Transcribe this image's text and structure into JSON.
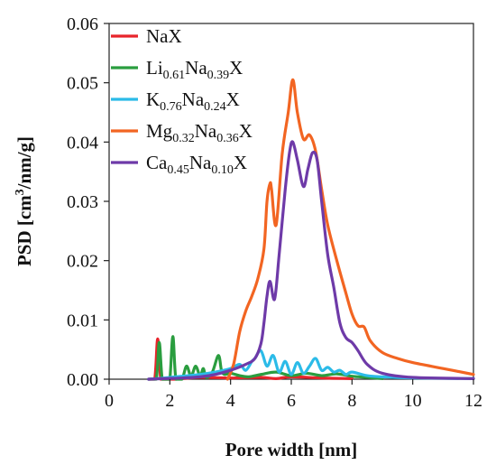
{
  "chart_data": {
    "type": "line",
    "xlabel": "Pore width [nm]",
    "ylabel_main": "PSD [cm",
    "ylabel_sup": "3",
    "ylabel_tail": "/nm/g]",
    "xlim": [
      0,
      12
    ],
    "ylim": [
      0,
      0.06
    ],
    "xticks": [
      "0",
      "2",
      "4",
      "6",
      "8",
      "10",
      "12"
    ],
    "yticks": [
      "0.00",
      "0.01",
      "0.02",
      "0.03",
      "0.04",
      "0.05",
      "0.06"
    ],
    "legend_position": "top-left",
    "grid": false,
    "series": [
      {
        "key": "nax",
        "legend": [
          {
            "t": "NaX",
            "sub": false
          }
        ],
        "color": "#e8242b",
        "x": [
          1.3,
          1.5,
          1.6,
          1.7,
          1.8,
          2.0,
          2.1,
          2.2,
          3.0,
          4.0,
          5.0,
          5.5,
          6.0,
          7.0,
          8.0
        ],
        "y": [
          0.0,
          0.0,
          0.0068,
          0.0,
          0.0,
          0.0,
          0.0,
          0.0,
          0.0003,
          0.0002,
          0.0003,
          0.0001,
          0.0004,
          0.0002,
          0.0001
        ]
      },
      {
        "key": "li",
        "legend": [
          {
            "t": "Li",
            "sub": false
          },
          {
            "t": "0.61",
            "sub": true
          },
          {
            "t": "Na",
            "sub": false
          },
          {
            "t": "0.39",
            "sub": true
          },
          {
            "t": "X",
            "sub": false
          }
        ],
        "color": "#2a9d3f",
        "x": [
          1.3,
          1.55,
          1.65,
          1.75,
          1.9,
          2.0,
          2.1,
          2.2,
          2.4,
          2.55,
          2.7,
          2.85,
          3.0,
          3.1,
          3.2,
          3.4,
          3.6,
          3.7,
          3.8,
          4.0,
          4.3,
          4.6,
          5.0,
          5.5,
          6.0,
          6.5,
          7.0,
          7.5,
          8.0,
          8.5,
          9.0
        ],
        "y": [
          0.0,
          0.0,
          0.0062,
          0.0,
          0.0,
          0.0,
          0.0072,
          0.0,
          0.0,
          0.0022,
          0.0005,
          0.0022,
          0.0005,
          0.0018,
          0.0003,
          0.0012,
          0.004,
          0.0015,
          0.0008,
          0.001,
          0.0006,
          0.0004,
          0.0008,
          0.0012,
          0.0006,
          0.001,
          0.0006,
          0.0009,
          0.0005,
          0.0003,
          0.0001
        ]
      },
      {
        "key": "k",
        "legend": [
          {
            "t": "K",
            "sub": false
          },
          {
            "t": "0.76",
            "sub": true
          },
          {
            "t": "Na",
            "sub": false
          },
          {
            "t": "0.24",
            "sub": true
          },
          {
            "t": "X",
            "sub": false
          }
        ],
        "color": "#2bbbe8",
        "x": [
          1.3,
          1.8,
          2.4,
          3.0,
          3.5,
          4.0,
          4.3,
          4.5,
          4.7,
          4.8,
          5.0,
          5.2,
          5.4,
          5.6,
          5.8,
          6.0,
          6.2,
          6.4,
          6.6,
          6.8,
          7.0,
          7.2,
          7.4,
          7.6,
          7.8,
          8.0,
          8.5,
          9.0,
          10.0,
          12.0
        ],
        "y": [
          0.0,
          0.0002,
          0.0005,
          0.0008,
          0.0012,
          0.0018,
          0.0025,
          0.0015,
          0.003,
          0.0035,
          0.0048,
          0.0022,
          0.004,
          0.0012,
          0.003,
          0.0008,
          0.0028,
          0.001,
          0.0022,
          0.0035,
          0.0015,
          0.002,
          0.0012,
          0.0015,
          0.0008,
          0.0012,
          0.0006,
          0.0004,
          0.0002,
          0.0001
        ]
      },
      {
        "key": "mg",
        "legend": [
          {
            "t": "Mg",
            "sub": false
          },
          {
            "t": "0.32",
            "sub": true
          },
          {
            "t": "Na",
            "sub": false
          },
          {
            "t": "0.36",
            "sub": true
          },
          {
            "t": "X",
            "sub": false
          }
        ],
        "color": "#f26522",
        "x": [
          3.9,
          4.1,
          4.3,
          4.5,
          4.7,
          4.9,
          5.1,
          5.2,
          5.3,
          5.35,
          5.5,
          5.7,
          5.9,
          6.05,
          6.2,
          6.4,
          6.6,
          6.8,
          7.0,
          7.2,
          7.5,
          7.8,
          8.0,
          8.2,
          8.4,
          8.6,
          9.0,
          9.5,
          10.0,
          11.0,
          12.0
        ],
        "y": [
          0.0,
          0.0025,
          0.008,
          0.0115,
          0.014,
          0.017,
          0.022,
          0.03,
          0.033,
          0.032,
          0.026,
          0.038,
          0.045,
          0.0505,
          0.045,
          0.0405,
          0.0412,
          0.0385,
          0.032,
          0.026,
          0.02,
          0.0145,
          0.011,
          0.009,
          0.0088,
          0.0065,
          0.0045,
          0.0035,
          0.0028,
          0.0018,
          0.0008
        ]
      },
      {
        "key": "ca",
        "legend": [
          {
            "t": "Ca",
            "sub": false
          },
          {
            "t": "0.45",
            "sub": true
          },
          {
            "t": "Na",
            "sub": false
          },
          {
            "t": "0.10",
            "sub": true
          },
          {
            "t": "X",
            "sub": false
          }
        ],
        "color": "#6e3aa8",
        "x": [
          1.3,
          1.8,
          2.4,
          3.0,
          3.5,
          4.0,
          4.5,
          4.8,
          5.0,
          5.1,
          5.2,
          5.3,
          5.45,
          5.6,
          5.8,
          5.95,
          6.05,
          6.2,
          6.4,
          6.55,
          6.7,
          6.85,
          7.0,
          7.2,
          7.4,
          7.6,
          7.8,
          8.0,
          8.2,
          8.5,
          9.0,
          10.0,
          12.0
        ],
        "y": [
          0.0,
          0.0001,
          0.0002,
          0.0004,
          0.0008,
          0.0015,
          0.0025,
          0.0035,
          0.006,
          0.0095,
          0.014,
          0.0165,
          0.0135,
          0.021,
          0.032,
          0.0385,
          0.04,
          0.037,
          0.0325,
          0.0355,
          0.0382,
          0.037,
          0.03,
          0.021,
          0.0155,
          0.0095,
          0.007,
          0.0062,
          0.0048,
          0.0025,
          0.001,
          0.0003,
          0.0001
        ]
      }
    ]
  }
}
